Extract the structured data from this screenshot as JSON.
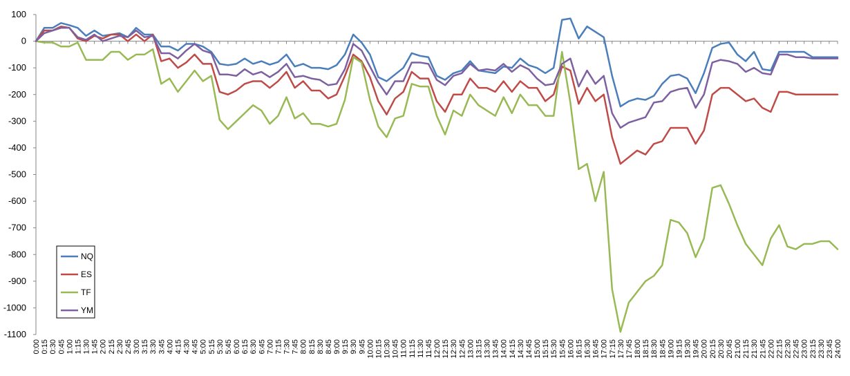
{
  "chart_data": {
    "type": "line",
    "title": "",
    "xlabel": "",
    "ylabel": "",
    "ylim": [
      -1100,
      100
    ],
    "yticks": [
      100,
      0,
      -100,
      -200,
      -300,
      -400,
      -500,
      -600,
      -700,
      -800,
      -900,
      -1000,
      -1100
    ],
    "grid": false,
    "legend_position": "bottom-left",
    "categories": [
      "0:00",
      "0:15",
      "0:30",
      "0:45",
      "1:00",
      "1:15",
      "1:30",
      "1:45",
      "2:00",
      "2:15",
      "2:30",
      "2:45",
      "3:00",
      "3:15",
      "3:30",
      "3:45",
      "4:00",
      "4:15",
      "4:30",
      "4:45",
      "5:00",
      "5:15",
      "5:30",
      "5:45",
      "6:00",
      "6:15",
      "6:30",
      "6:45",
      "7:00",
      "7:15",
      "7:30",
      "7:45",
      "8:00",
      "8:15",
      "8:30",
      "8:45",
      "9:00",
      "9:15",
      "9:30",
      "9:45",
      "10:00",
      "10:15",
      "10:30",
      "10:45",
      "11:00",
      "11:15",
      "11:30",
      "11:45",
      "12:00",
      "12:15",
      "12:30",
      "12:45",
      "13:00",
      "13:15",
      "13:30",
      "13:45",
      "14:00",
      "14:15",
      "14:30",
      "14:45",
      "15:00",
      "15:15",
      "15:30",
      "15:45",
      "16:00",
      "16:15",
      "16:30",
      "16:45",
      "17:00",
      "17:15",
      "17:30",
      "17:45",
      "18:00",
      "18:15",
      "18:30",
      "18:45",
      "19:00",
      "19:15",
      "19:30",
      "19:45",
      "20:00",
      "20:15",
      "20:30",
      "20:45",
      "21:00",
      "21:15",
      "21:30",
      "21:45",
      "22:00",
      "22:15",
      "22:30",
      "22:45",
      "23:00",
      "23:15",
      "23:30",
      "23:45",
      "24:00"
    ],
    "series": [
      {
        "name": "NQ",
        "color": "#4a7ebb",
        "values": [
          0,
          50,
          50,
          68,
          60,
          50,
          20,
          40,
          20,
          25,
          30,
          15,
          50,
          25,
          25,
          -20,
          -20,
          -35,
          -10,
          -10,
          -20,
          -40,
          -85,
          -90,
          -85,
          -65,
          -85,
          -75,
          -88,
          -78,
          -50,
          -95,
          -85,
          -100,
          -100,
          -105,
          -90,
          -50,
          25,
          -5,
          -50,
          -135,
          -150,
          -125,
          -100,
          -45,
          -55,
          -60,
          -130,
          -145,
          -120,
          -110,
          -75,
          -110,
          -115,
          -120,
          -95,
          -100,
          -65,
          -90,
          -100,
          -120,
          -100,
          80,
          85,
          10,
          55,
          35,
          15,
          -130,
          -245,
          -225,
          -215,
          -220,
          -205,
          -160,
          -130,
          -125,
          -140,
          -195,
          -120,
          -25,
          -10,
          -5,
          -50,
          -75,
          -40,
          -105,
          -110,
          -40,
          -40,
          -40,
          -40,
          -60,
          -60,
          -60,
          -60
        ]
      },
      {
        "name": "ES",
        "color": "#be4b48",
        "values": [
          0,
          40,
          40,
          55,
          50,
          10,
          0,
          20,
          10,
          25,
          25,
          0,
          25,
          0,
          25,
          -75,
          -65,
          -100,
          -80,
          -50,
          -85,
          -85,
          -190,
          -200,
          -185,
          -160,
          -150,
          -150,
          -175,
          -150,
          -115,
          -175,
          -150,
          -185,
          -185,
          -215,
          -200,
          -130,
          -50,
          -75,
          -135,
          -225,
          -275,
          -215,
          -190,
          -115,
          -140,
          -140,
          -225,
          -265,
          -200,
          -200,
          -140,
          -175,
          -175,
          -190,
          -150,
          -190,
          -150,
          -175,
          -175,
          -225,
          -200,
          -95,
          -110,
          -235,
          -175,
          -225,
          -200,
          -360,
          -460,
          -435,
          -410,
          -425,
          -385,
          -375,
          -325,
          -325,
          -325,
          -385,
          -335,
          -200,
          -175,
          -175,
          -200,
          -225,
          -215,
          -250,
          -265,
          -190,
          -190,
          -200,
          -200,
          -200,
          -200,
          -200,
          -200
        ]
      },
      {
        "name": "TF",
        "color": "#98b954",
        "values": [
          0,
          -5,
          -5,
          -20,
          -20,
          -5,
          -70,
          -70,
          -70,
          -40,
          -40,
          -70,
          -50,
          -50,
          -30,
          -160,
          -140,
          -190,
          -150,
          -110,
          -150,
          -130,
          -295,
          -330,
          -300,
          -270,
          -240,
          -260,
          -310,
          -280,
          -210,
          -290,
          -270,
          -310,
          -310,
          -320,
          -310,
          -220,
          -60,
          -80,
          -220,
          -320,
          -360,
          -290,
          -280,
          -160,
          -170,
          -170,
          -280,
          -350,
          -260,
          -280,
          -200,
          -240,
          -260,
          -280,
          -210,
          -270,
          -200,
          -240,
          -240,
          -280,
          -280,
          -40,
          -230,
          -480,
          -460,
          -600,
          -490,
          -930,
          -1090,
          -980,
          -940,
          -900,
          -880,
          -840,
          -670,
          -680,
          -720,
          -810,
          -740,
          -550,
          -540,
          -610,
          -690,
          -760,
          -800,
          -840,
          -740,
          -690,
          -770,
          -780,
          -760,
          -760,
          -750,
          -750,
          -780
        ]
      },
      {
        "name": "YM",
        "color": "#7d60a0",
        "values": [
          0,
          30,
          40,
          50,
          50,
          15,
          5,
          25,
          0,
          10,
          20,
          15,
          40,
          15,
          20,
          -45,
          -45,
          -65,
          -35,
          -10,
          -35,
          -45,
          -125,
          -125,
          -130,
          -105,
          -125,
          -115,
          -135,
          -115,
          -85,
          -135,
          -130,
          -140,
          -145,
          -165,
          -160,
          -105,
          -10,
          -35,
          -95,
          -155,
          -200,
          -150,
          -150,
          -80,
          -80,
          -85,
          -145,
          -165,
          -130,
          -120,
          -85,
          -110,
          -105,
          -110,
          -85,
          -115,
          -90,
          -105,
          -140,
          -165,
          -160,
          -85,
          -65,
          -170,
          -110,
          -160,
          -130,
          -270,
          -325,
          -305,
          -295,
          -285,
          -230,
          -225,
          -190,
          -180,
          -175,
          -250,
          -200,
          -80,
          -70,
          -75,
          -85,
          -115,
          -100,
          -120,
          -125,
          -50,
          -50,
          -60,
          -60,
          -65,
          -65,
          -65,
          -65
        ]
      }
    ]
  }
}
